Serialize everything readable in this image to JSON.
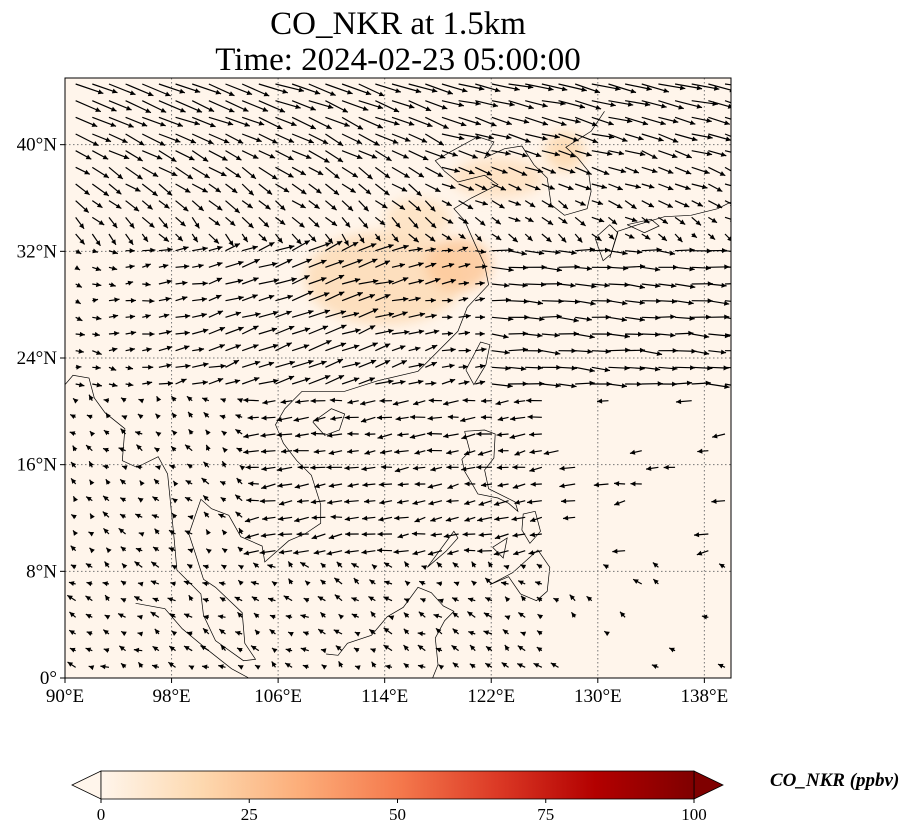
{
  "title": {
    "line1": "CO_NKR at 1.5km",
    "line2": "Time: 2024-02-23 05:00:00"
  },
  "map": {
    "extent": {
      "lon_min": 90,
      "lon_max": 140,
      "lat_min": 0,
      "lat_max": 45
    },
    "lat_ticks": [
      {
        "value": 0,
        "label": "0°"
      },
      {
        "value": 8,
        "label": "8°N"
      },
      {
        "value": 16,
        "label": "16°N"
      },
      {
        "value": 24,
        "label": "24°N"
      },
      {
        "value": 32,
        "label": "32°N"
      },
      {
        "value": 40,
        "label": "40°N"
      }
    ],
    "lon_ticks": [
      {
        "value": 90,
        "label": "90°E"
      },
      {
        "value": 98,
        "label": "98°E"
      },
      {
        "value": 106,
        "label": "106°E"
      },
      {
        "value": 114,
        "label": "114°E"
      },
      {
        "value": 122,
        "label": "122°E"
      },
      {
        "value": 130,
        "label": "130°E"
      },
      {
        "value": 138,
        "label": "138°E"
      }
    ],
    "gridlines": true,
    "background_color": "#fff5eb",
    "plume_color": "#fdd9b0",
    "arrow_color": "#000000",
    "plume_regions": [
      {
        "lon": 114,
        "lat": 30,
        "rlon": 6,
        "rlat": 3.5,
        "level": 14
      },
      {
        "lon": 119.5,
        "lat": 31,
        "rlon": 2.5,
        "rlat": 2,
        "level": 22
      },
      {
        "lon": 122.5,
        "lat": 37.5,
        "rlon": 3.5,
        "rlat": 1.5,
        "level": 12
      },
      {
        "lon": 127.5,
        "lat": 39.5,
        "rlon": 1.5,
        "rlat": 1.5,
        "level": 16
      },
      {
        "lon": 116.5,
        "lat": 34.5,
        "rlon": 2.5,
        "rlat": 1.5,
        "level": 11
      }
    ]
  },
  "colorbar": {
    "label": "CO_NKR (ppbv)",
    "min": 0,
    "max": 100,
    "extend": "both",
    "colormap": "OrRd",
    "ticks": [
      {
        "value": 0,
        "label": "0"
      },
      {
        "value": 25,
        "label": "25"
      },
      {
        "value": 50,
        "label": "50"
      },
      {
        "value": 75,
        "label": "75"
      },
      {
        "value": 100,
        "label": "100"
      }
    ],
    "stops": [
      "#fff5eb",
      "#fdd9b0",
      "#fcae7a",
      "#f57a4d",
      "#dc3a26",
      "#b30000",
      "#7f0000"
    ]
  }
}
